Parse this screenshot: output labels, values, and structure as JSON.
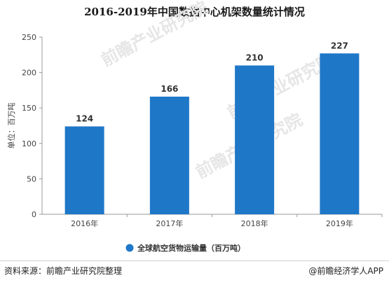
{
  "chart_data": {
    "type": "bar",
    "title": "2016-2019年中国数据中心机架数量统计情况",
    "categories": [
      "2016年",
      "2017年",
      "2018年",
      "2019年"
    ],
    "series": [
      {
        "name": "全球航空货物运输量（百万吨）",
        "values": [
          124,
          166,
          210,
          227
        ],
        "color": "#1f77c8"
      }
    ],
    "ylabel": "单位：百万吨",
    "ylim": [
      0,
      250
    ],
    "yticks": [
      0,
      50,
      100,
      150,
      200,
      250
    ],
    "grid": false,
    "legend_position": "bottom"
  },
  "footer": {
    "source": "资料来源：前瞻产业研究院整理",
    "brand": "@前瞻经济学人APP"
  },
  "watermark": {
    "text": "前瞻产业研究院"
  }
}
